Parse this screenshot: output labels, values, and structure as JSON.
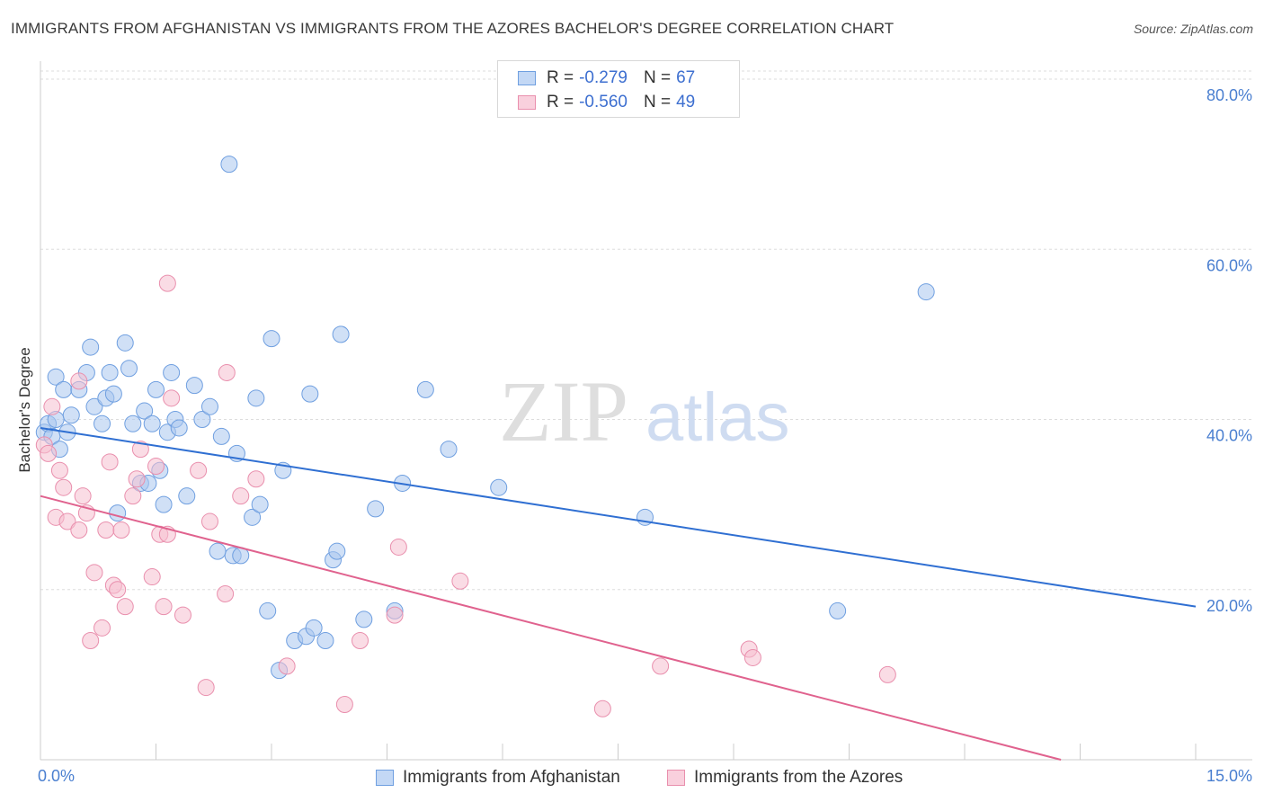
{
  "header": {
    "title": "IMMIGRANTS FROM AFGHANISTAN VS IMMIGRANTS FROM THE AZORES BACHELOR'S DEGREE CORRELATION CHART",
    "source": "Source: ZipAtlas.com"
  },
  "colors": {
    "blue_fill": "#a9c6ef",
    "blue_stroke": "#6f9fe0",
    "blue_line": "#2f6fd2",
    "pink_fill": "#f6bfd0",
    "pink_stroke": "#e98fad",
    "pink_line": "#e0628e",
    "axis_text": "#4a7fd0",
    "grid": "#dddddd"
  },
  "legend": {
    "series1": {
      "r_label": "R =",
      "r_value": "-0.279",
      "n_label": "N =",
      "n_value": "67"
    },
    "series2": {
      "r_label": "R =",
      "r_value": "-0.560",
      "n_label": "N =",
      "n_value": "49"
    }
  },
  "watermark": {
    "zip": "ZIP",
    "atlas": "atlas"
  },
  "chart_data": {
    "type": "scatter",
    "title": "IMMIGRANTS FROM AFGHANISTAN VS IMMIGRANTS FROM THE AZORES BACHELOR'S DEGREE CORRELATION CHART",
    "xlabel": "",
    "ylabel": "Bachelor's Degree",
    "xlim": [
      0,
      15
    ],
    "ylim": [
      0,
      80
    ],
    "x_tick_labels": [
      "0.0%",
      "15.0%"
    ],
    "y_ticks": [
      20,
      40,
      60,
      80
    ],
    "y_tick_labels": [
      "20.0%",
      "40.0%",
      "60.0%",
      "80.0%"
    ],
    "grid": true,
    "legend_position": "top-center",
    "series": [
      {
        "name": "Immigrants from Afghanistan",
        "color": "#a9c6ef",
        "trend": [
          [
            0.0,
            39.0
          ],
          [
            15.0,
            18.0
          ]
        ],
        "points": [
          [
            0.05,
            38.5
          ],
          [
            0.1,
            39.5
          ],
          [
            0.15,
            38.0
          ],
          [
            0.2,
            40.0
          ],
          [
            0.2,
            45.0
          ],
          [
            0.25,
            36.5
          ],
          [
            0.3,
            43.5
          ],
          [
            0.35,
            38.5
          ],
          [
            0.4,
            40.5
          ],
          [
            0.5,
            43.5
          ],
          [
            0.6,
            45.5
          ],
          [
            0.65,
            48.5
          ],
          [
            0.7,
            41.5
          ],
          [
            0.8,
            39.5
          ],
          [
            0.85,
            42.5
          ],
          [
            0.9,
            45.5
          ],
          [
            0.95,
            43.0
          ],
          [
            1.0,
            29.0
          ],
          [
            1.1,
            49.0
          ],
          [
            1.15,
            46.0
          ],
          [
            1.2,
            39.5
          ],
          [
            1.3,
            32.5
          ],
          [
            1.35,
            41.0
          ],
          [
            1.4,
            32.5
          ],
          [
            1.45,
            39.5
          ],
          [
            1.5,
            43.5
          ],
          [
            1.55,
            34.0
          ],
          [
            1.6,
            30.0
          ],
          [
            1.65,
            38.5
          ],
          [
            1.7,
            45.5
          ],
          [
            1.75,
            40.0
          ],
          [
            1.8,
            39.0
          ],
          [
            1.9,
            31.0
          ],
          [
            2.0,
            44.0
          ],
          [
            2.1,
            40.0
          ],
          [
            2.2,
            41.5
          ],
          [
            2.35,
            38.0
          ],
          [
            2.45,
            70.0
          ],
          [
            2.5,
            24.0
          ],
          [
            2.55,
            36.0
          ],
          [
            2.6,
            24.0
          ],
          [
            2.75,
            28.5
          ],
          [
            2.8,
            42.5
          ],
          [
            2.85,
            30.0
          ],
          [
            2.95,
            17.5
          ],
          [
            3.0,
            49.5
          ],
          [
            3.1,
            10.5
          ],
          [
            3.15,
            34.0
          ],
          [
            3.3,
            14.0
          ],
          [
            3.45,
            14.5
          ],
          [
            3.5,
            43.0
          ],
          [
            3.55,
            15.5
          ],
          [
            3.7,
            14.0
          ],
          [
            3.8,
            23.5
          ],
          [
            3.85,
            24.5
          ],
          [
            3.9,
            50.0
          ],
          [
            4.2,
            16.5
          ],
          [
            4.35,
            29.5
          ],
          [
            4.6,
            17.5
          ],
          [
            4.7,
            32.5
          ],
          [
            5.0,
            43.5
          ],
          [
            5.3,
            36.5
          ],
          [
            5.95,
            32.0
          ],
          [
            7.85,
            28.5
          ],
          [
            10.35,
            17.5
          ],
          [
            11.5,
            55.0
          ],
          [
            2.3,
            24.5
          ]
        ]
      },
      {
        "name": "Immigrants from the Azores",
        "color": "#f6bfd0",
        "trend": [
          [
            0.0,
            31.0
          ],
          [
            13.25,
            0.0
          ]
        ],
        "points": [
          [
            0.05,
            37.0
          ],
          [
            0.1,
            36.0
          ],
          [
            0.15,
            41.5
          ],
          [
            0.2,
            28.5
          ],
          [
            0.25,
            34.0
          ],
          [
            0.3,
            32.0
          ],
          [
            0.35,
            28.0
          ],
          [
            0.5,
            44.5
          ],
          [
            0.5,
            27.0
          ],
          [
            0.55,
            31.0
          ],
          [
            0.6,
            29.0
          ],
          [
            0.65,
            14.0
          ],
          [
            0.7,
            22.0
          ],
          [
            0.8,
            15.5
          ],
          [
            0.85,
            27.0
          ],
          [
            0.9,
            35.0
          ],
          [
            0.95,
            20.5
          ],
          [
            1.0,
            20.0
          ],
          [
            1.05,
            27.0
          ],
          [
            1.1,
            18.0
          ],
          [
            1.2,
            31.0
          ],
          [
            1.25,
            33.0
          ],
          [
            1.3,
            36.5
          ],
          [
            1.45,
            21.5
          ],
          [
            1.5,
            34.5
          ],
          [
            1.55,
            26.5
          ],
          [
            1.6,
            18.0
          ],
          [
            1.65,
            56.0
          ],
          [
            1.65,
            26.5
          ],
          [
            1.7,
            42.5
          ],
          [
            1.85,
            17.0
          ],
          [
            2.05,
            34.0
          ],
          [
            2.15,
            8.5
          ],
          [
            2.2,
            28.0
          ],
          [
            2.4,
            19.5
          ],
          [
            2.42,
            45.5
          ],
          [
            2.6,
            31.0
          ],
          [
            2.8,
            33.0
          ],
          [
            3.2,
            11.0
          ],
          [
            3.95,
            6.5
          ],
          [
            4.15,
            14.0
          ],
          [
            4.6,
            17.0
          ],
          [
            4.65,
            25.0
          ],
          [
            5.45,
            21.0
          ],
          [
            7.3,
            6.0
          ],
          [
            8.05,
            11.0
          ],
          [
            9.2,
            13.0
          ],
          [
            9.25,
            12.0
          ],
          [
            11.0,
            10.0
          ]
        ]
      }
    ]
  }
}
